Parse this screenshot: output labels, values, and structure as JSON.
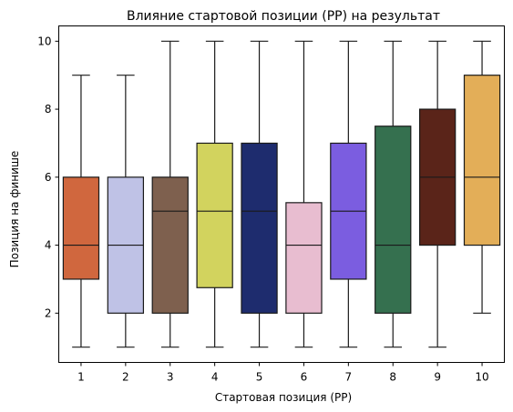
{
  "chart_data": {
    "type": "box",
    "title": "Влияние стартовой позиции (PP) на результат",
    "xlabel": "Стартовая позиция (PP)",
    "ylabel": "Позиция на финише",
    "categories": [
      "1",
      "2",
      "3",
      "4",
      "5",
      "6",
      "7",
      "8",
      "9",
      "10"
    ],
    "boxes": [
      {
        "category": "1",
        "whisker_low": 1,
        "q1": 3,
        "median": 4,
        "q3": 6,
        "whisker_high": 9,
        "color": "#D0673E"
      },
      {
        "category": "2",
        "whisker_low": 1,
        "q1": 2,
        "median": 4,
        "q3": 6,
        "whisker_high": 9,
        "color": "#BFC2E6"
      },
      {
        "category": "3",
        "whisker_low": 1,
        "q1": 2,
        "median": 5,
        "q3": 6,
        "whisker_high": 10,
        "color": "#7E604E"
      },
      {
        "category": "4",
        "whisker_low": 1,
        "q1": 2.75,
        "median": 5,
        "q3": 7,
        "whisker_high": 10,
        "color": "#D2D35E"
      },
      {
        "category": "5",
        "whisker_low": 1,
        "q1": 2,
        "median": 5,
        "q3": 7,
        "whisker_high": 10,
        "color": "#1E2C6E"
      },
      {
        "category": "6",
        "whisker_low": 1,
        "q1": 2,
        "median": 4,
        "q3": 5.25,
        "whisker_high": 10,
        "color": "#E8BDD0"
      },
      {
        "category": "7",
        "whisker_low": 1,
        "q1": 3,
        "median": 5,
        "q3": 7,
        "whisker_high": 10,
        "color": "#7B5DE0"
      },
      {
        "category": "8",
        "whisker_low": 1,
        "q1": 2,
        "median": 4,
        "q3": 7.5,
        "whisker_high": 10,
        "color": "#35704F"
      },
      {
        "category": "9",
        "whisker_low": 1,
        "q1": 4,
        "median": 6,
        "q3": 8,
        "whisker_high": 10,
        "color": "#5A2419"
      },
      {
        "category": "10",
        "whisker_low": 2,
        "q1": 4,
        "median": 6,
        "q3": 9,
        "whisker_high": 10,
        "color": "#E3AE58"
      }
    ],
    "ylim": [
      0.55,
      10.45
    ],
    "yticks": [
      2,
      4,
      6,
      8,
      10
    ],
    "grid": false,
    "legend": "none"
  }
}
